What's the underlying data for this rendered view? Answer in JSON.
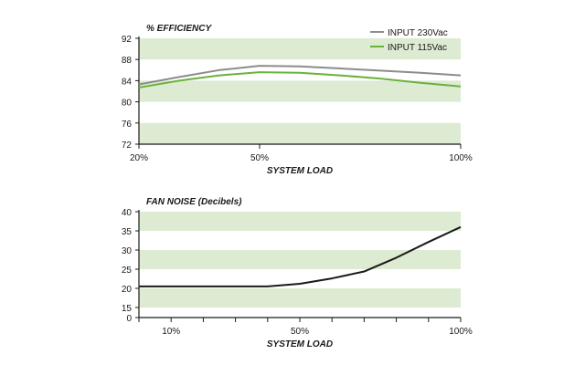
{
  "colors": {
    "band": "#dcebd2",
    "axis": "#1a1a1a",
    "series_230": "#8c8c8c",
    "series_115": "#6ab23c",
    "noise": "#1a1a1a"
  },
  "chart_data": [
    {
      "type": "line",
      "title": "% EFFICIENCY",
      "xlabel": "SYSTEM LOAD",
      "ylabel": "% Efficiency",
      "xlim": [
        20,
        100
      ],
      "ylim": [
        72,
        92
      ],
      "yticks": [
        "92",
        "88",
        "84",
        "80",
        "76",
        "72"
      ],
      "xtick_labels": [
        {
          "value": 20,
          "label": "20%"
        },
        {
          "value": 50,
          "label": "50%"
        },
        {
          "value": 100,
          "label": "100%"
        }
      ],
      "bands": [
        [
          88,
          92
        ],
        [
          80,
          84
        ],
        [
          72,
          76
        ]
      ],
      "legend_position": "top-right",
      "series": [
        {
          "name": "INPUT 230Vac",
          "color": "#8c8c8c",
          "x": [
            20,
            30,
            40,
            50,
            60,
            70,
            80,
            90,
            100
          ],
          "y": [
            83.3,
            84.7,
            86.0,
            86.8,
            86.7,
            86.3,
            85.9,
            85.5,
            85.0
          ]
        },
        {
          "name": "INPUT 115Vac",
          "color": "#6ab23c",
          "x": [
            20,
            30,
            40,
            50,
            60,
            70,
            80,
            90,
            100
          ],
          "y": [
            82.7,
            84.0,
            85.0,
            85.6,
            85.5,
            85.0,
            84.4,
            83.6,
            82.9
          ]
        }
      ]
    },
    {
      "type": "line",
      "title": "FAN NOISE (Decibels)",
      "xlabel": "SYSTEM LOAD",
      "ylabel": "Decibels",
      "xlim": [
        0,
        100
      ],
      "ylim": [
        0,
        40
      ],
      "yticks": [
        {
          "value": 40,
          "label": "40"
        },
        {
          "value": 35,
          "label": "35"
        },
        {
          "value": 30,
          "label": "30"
        },
        {
          "value": 25,
          "label": "25"
        },
        {
          "value": 20,
          "label": "20"
        },
        {
          "value": 15,
          "label": "15"
        },
        {
          "value": 0,
          "label": "0"
        }
      ],
      "xtick_count": 11,
      "xtick_labels": [
        {
          "value": 10,
          "label": "10%"
        },
        {
          "value": 50,
          "label": "50%"
        },
        {
          "value": 100,
          "label": "100%"
        }
      ],
      "bands": [
        [
          35,
          40
        ],
        [
          25,
          30
        ],
        [
          15,
          20
        ]
      ],
      "series": [
        {
          "name": "Fan Noise",
          "color": "#1a1a1a",
          "x": [
            0,
            10,
            20,
            30,
            40,
            50,
            60,
            70,
            80,
            90,
            100
          ],
          "y": [
            20.5,
            20.5,
            20.5,
            20.5,
            20.5,
            21.2,
            22.6,
            24.4,
            28,
            32.1,
            36
          ]
        }
      ]
    }
  ]
}
